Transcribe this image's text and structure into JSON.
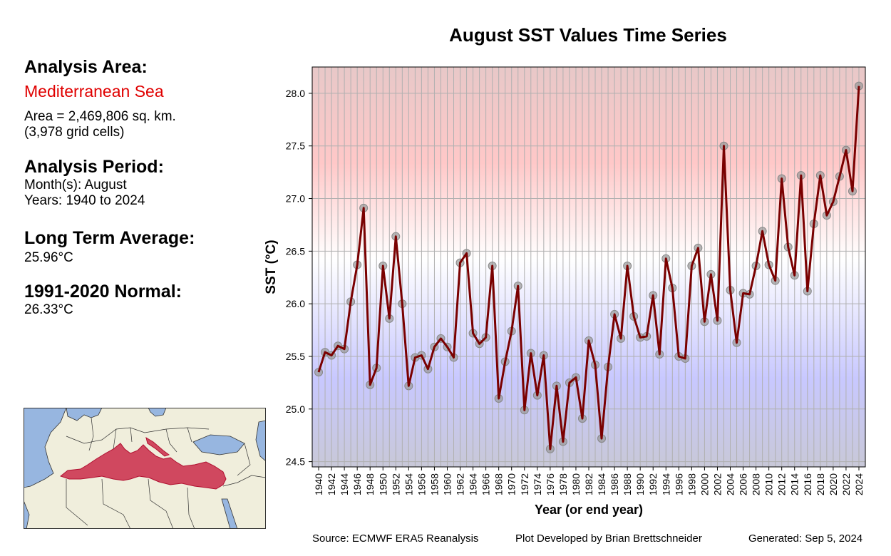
{
  "chart_data": {
    "type": "line",
    "title": "August SST Values Time Series",
    "xlabel": "Year (or end year)",
    "ylabel": "SST (°C)",
    "xlim": [
      1939,
      2025
    ],
    "ylim": [
      24.45,
      28.25
    ],
    "yticks": [
      24.5,
      25.0,
      25.5,
      26.0,
      26.5,
      27.0,
      27.5,
      28.0
    ],
    "ytick_labels": [
      "24.5",
      "25.0",
      "25.5",
      "26.0",
      "26.5",
      "27.0",
      "27.5",
      "28.0"
    ],
    "xtick_labels": [
      "1940",
      "1942",
      "1944",
      "1946",
      "1948",
      "1950",
      "1952",
      "1954",
      "1956",
      "1958",
      "1960",
      "1962",
      "1964",
      "1966",
      "1968",
      "1970",
      "1972",
      "1974",
      "1976",
      "1978",
      "1980",
      "1982",
      "1984",
      "1986",
      "1988",
      "1990",
      "1992",
      "1994",
      "1996",
      "1998",
      "2000",
      "2002",
      "2004",
      "2006",
      "2008",
      "2010",
      "2012",
      "2014",
      "2016",
      "2018",
      "2020",
      "2022",
      "2024"
    ],
    "grid": true,
    "series": [
      {
        "name": "August SST",
        "x": [
          1940,
          1941,
          1942,
          1943,
          1944,
          1945,
          1946,
          1947,
          1948,
          1949,
          1950,
          1951,
          1952,
          1953,
          1954,
          1955,
          1956,
          1957,
          1958,
          1959,
          1960,
          1961,
          1962,
          1963,
          1964,
          1965,
          1966,
          1967,
          1968,
          1969,
          1970,
          1971,
          1972,
          1973,
          1974,
          1975,
          1976,
          1977,
          1978,
          1979,
          1980,
          1981,
          1982,
          1983,
          1984,
          1985,
          1986,
          1987,
          1988,
          1989,
          1990,
          1991,
          1992,
          1993,
          1994,
          1995,
          1996,
          1997,
          1998,
          1999,
          2000,
          2001,
          2002,
          2003,
          2004,
          2005,
          2006,
          2007,
          2008,
          2009,
          2010,
          2011,
          2012,
          2013,
          2014,
          2015,
          2016,
          2017,
          2018,
          2019,
          2020,
          2021,
          2022,
          2023,
          2024
        ],
        "values": [
          25.35,
          25.54,
          25.51,
          25.6,
          25.57,
          26.02,
          26.37,
          26.91,
          25.23,
          25.39,
          26.36,
          25.86,
          26.64,
          26.0,
          25.22,
          25.49,
          25.51,
          25.38,
          25.59,
          25.67,
          25.59,
          25.49,
          26.39,
          26.48,
          25.72,
          25.62,
          25.68,
          26.36,
          25.1,
          25.45,
          25.74,
          26.17,
          24.99,
          25.53,
          25.13,
          25.51,
          24.62,
          25.22,
          24.69,
          25.25,
          25.3,
          24.91,
          25.65,
          25.42,
          24.72,
          25.4,
          25.9,
          25.67,
          26.36,
          25.88,
          25.68,
          25.69,
          26.08,
          25.52,
          26.43,
          26.15,
          25.5,
          25.48,
          26.36,
          26.53,
          25.83,
          26.28,
          25.84,
          27.5,
          26.13,
          25.63,
          26.1,
          26.09,
          26.36,
          26.69,
          26.37,
          26.22,
          27.19,
          26.54,
          26.27,
          27.22,
          26.12,
          26.76,
          27.22,
          26.84,
          26.97,
          27.21,
          27.46,
          27.07,
          28.07
        ]
      }
    ]
  },
  "sidebar": {
    "analysis_area_heading": "Analysis Area:",
    "area_name": "Mediterranean Sea",
    "area_size": "Area = 2,469,806 sq. km.",
    "grid_cells": "(3,978 grid cells)",
    "analysis_period_heading": "Analysis Period:",
    "months": "Month(s): August",
    "years": "Years: 1940 to 2024",
    "long_term_heading": "Long Term Average:",
    "long_term_value": "25.96°C",
    "normal_heading": "1991-2020 Normal:",
    "normal_value": "26.33°C"
  },
  "footer": {
    "source": "Source: ECMWF ERA5 Reanalysis",
    "credit": "Plot Developed by Brian Brettschneider",
    "generated": "Generated: Sep 5, 2024"
  },
  "colors": {
    "line": "#7a0000",
    "marker": "#999999",
    "area_highlight": "#d0485f",
    "water": "#97b6e0",
    "land": "#f0eedc",
    "title_accent": "#e00000"
  }
}
